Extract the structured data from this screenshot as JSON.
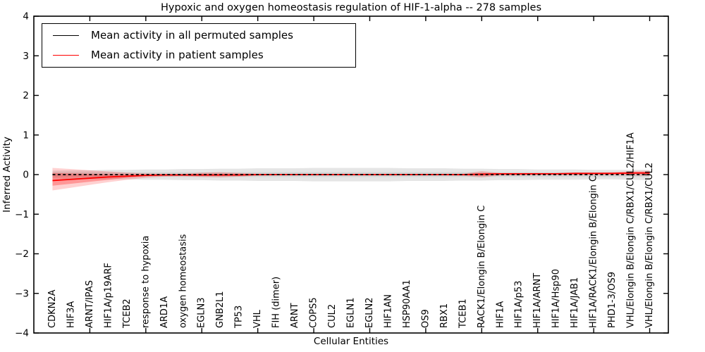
{
  "chart_data": {
    "type": "line",
    "title": "Hypoxic and oxygen homeostasis regulation of HIF-1-alpha -- 278 samples",
    "xlabel": "Cellular Entities",
    "ylabel": "Inferred Activity",
    "ylim": [
      -4,
      4
    ],
    "yticks": [
      4,
      3,
      2,
      1,
      0,
      -1,
      -2,
      -3,
      -4
    ],
    "xlim": [
      0,
      34
    ],
    "x_major_ticks": [
      3,
      6,
      9,
      12,
      15,
      18,
      21,
      24,
      27,
      30,
      33
    ],
    "grid": false,
    "legend_position": "upper left",
    "categories": [
      "CDKN2A",
      "HIF3A",
      "ARNT/IPAS",
      "HIF1A/p19ARF",
      "TCEB2",
      "response to hypoxia",
      "ARD1A",
      "oxygen homeostasis",
      "EGLN3",
      "GNB2L1",
      "TP53",
      "VHL",
      "FIH (dimer)",
      "ARNT",
      "COPS5",
      "CUL2",
      "EGLN1",
      "EGLN2",
      "HIF1AN",
      "HSP90AA1",
      "OS9",
      "RBX1",
      "TCEB1",
      "RACK1/Elongin B/Elongin C",
      "HIF1A",
      "HIF1A/p53",
      "HIF1A/ARNT",
      "HIF1A/Hsp90",
      "HIF1A/JAB1",
      "HIF1A/RACK1/Elongin B/Elongin C",
      "PHD1-3/OS9",
      "VHL/Elongin B/Elongin C/RBX1/CUL2/HIF1A",
      "VHL/Elongin B/Elongin C/RBX1/CUL2"
    ],
    "series": [
      {
        "name": "Mean activity in all permuted samples",
        "color": "#000000",
        "line_style": "dashed",
        "values": [
          0,
          0,
          0,
          0,
          0,
          0,
          0,
          0,
          0,
          0,
          0,
          0,
          0,
          0,
          0,
          0,
          0,
          0,
          0,
          0,
          0,
          0,
          0,
          0,
          0,
          0,
          0,
          0,
          0,
          0,
          0,
          0,
          0
        ]
      },
      {
        "name": "Mean activity in patient samples",
        "color": "#ff0000",
        "line_style": "solid",
        "values": [
          -0.15,
          -0.12,
          -0.09,
          -0.06,
          -0.04,
          -0.02,
          -0.01,
          -0.01,
          -0.01,
          -0.01,
          -0.01,
          0,
          0,
          0,
          0,
          0,
          0,
          0,
          0,
          0,
          0,
          0,
          0,
          0.01,
          0.02,
          0.02,
          0.02,
          0.02,
          0.03,
          0.03,
          0.03,
          0.04,
          0.04
        ]
      }
    ],
    "bands": [
      {
        "name": "permuted-sample-range-outer",
        "color": "#000000",
        "opacity": 0.1,
        "upper": [
          0.1,
          0.11,
          0.11,
          0.12,
          0.12,
          0.13,
          0.13,
          0.14,
          0.14,
          0.15,
          0.15,
          0.16,
          0.16,
          0.16,
          0.17,
          0.17,
          0.17,
          0.17,
          0.17,
          0.16,
          0.16,
          0.16,
          0.15,
          0.15,
          0.14,
          0.14,
          0.13,
          0.13,
          0.13,
          0.12,
          0.12,
          0.12,
          0.12
        ],
        "lower": [
          -0.1,
          -0.11,
          -0.11,
          -0.12,
          -0.12,
          -0.13,
          -0.13,
          -0.14,
          -0.14,
          -0.15,
          -0.15,
          -0.16,
          -0.16,
          -0.16,
          -0.17,
          -0.17,
          -0.17,
          -0.17,
          -0.17,
          -0.16,
          -0.16,
          -0.16,
          -0.15,
          -0.15,
          -0.14,
          -0.14,
          -0.13,
          -0.13,
          -0.13,
          -0.12,
          -0.12,
          -0.13,
          -0.14
        ]
      },
      {
        "name": "permuted-sample-range-inner",
        "color": "#000000",
        "opacity": 0.07,
        "upper": [
          0.06,
          0.06,
          0.06,
          0.06,
          0.06,
          0.06,
          0.06,
          0.06,
          0.06,
          0.06,
          0.06,
          0.06,
          0.06,
          0.06,
          0.06,
          0.06,
          0.06,
          0.06,
          0.06,
          0.06,
          0.06,
          0.06,
          0.06,
          0.06,
          0.06,
          0.06,
          0.06,
          0.06,
          0.06,
          0.06,
          0.06,
          0.06,
          0.06
        ],
        "lower": [
          -0.06,
          -0.06,
          -0.06,
          -0.06,
          -0.06,
          -0.06,
          -0.06,
          -0.06,
          -0.06,
          -0.06,
          -0.06,
          -0.06,
          -0.06,
          -0.06,
          -0.06,
          -0.06,
          -0.06,
          -0.06,
          -0.06,
          -0.06,
          -0.06,
          -0.06,
          -0.06,
          -0.06,
          -0.06,
          -0.06,
          -0.06,
          -0.06,
          -0.06,
          -0.06,
          -0.06,
          -0.06,
          -0.06
        ]
      },
      {
        "name": "patient-sample-range-outer",
        "color": "#ff0000",
        "opacity": 0.18,
        "upper": [
          0.17,
          0.14,
          0.11,
          0.08,
          0.05,
          0.03,
          0.02,
          0.02,
          0.05,
          0.06,
          0.04,
          0.02,
          0.01,
          0.01,
          0.01,
          0.01,
          0.01,
          0.01,
          0.01,
          0.01,
          0.01,
          0.01,
          0.02,
          0.09,
          0.04,
          0.04,
          0.04,
          0.04,
          0.05,
          0.05,
          0.06,
          0.09,
          0.1
        ],
        "lower": [
          -0.4,
          -0.33,
          -0.26,
          -0.19,
          -0.13,
          -0.08,
          -0.05,
          -0.04,
          -0.06,
          -0.07,
          -0.05,
          -0.03,
          -0.02,
          -0.02,
          -0.02,
          -0.02,
          -0.02,
          -0.02,
          -0.02,
          -0.02,
          -0.02,
          -0.02,
          -0.03,
          -0.07,
          -0.02,
          -0.02,
          -0.01,
          -0.01,
          -0.01,
          -0.01,
          -0.01,
          -0.02,
          -0.03
        ]
      },
      {
        "name": "patient-sample-range-inner",
        "color": "#ff0000",
        "opacity": 0.28,
        "upper": [
          0.04,
          0.03,
          0.02,
          0.01,
          0.01,
          0.01,
          0.01,
          0.01,
          0.02,
          0.02,
          0.02,
          0.01,
          0.01,
          0.01,
          0.01,
          0.01,
          0.01,
          0.01,
          0.01,
          0.01,
          0.01,
          0.01,
          0.01,
          0.04,
          0.03,
          0.03,
          0.03,
          0.03,
          0.04,
          0.04,
          0.04,
          0.06,
          0.07
        ],
        "lower": [
          -0.28,
          -0.23,
          -0.18,
          -0.13,
          -0.08,
          -0.04,
          -0.02,
          -0.02,
          -0.03,
          -0.03,
          -0.02,
          -0.01,
          -0.01,
          -0.01,
          -0.01,
          -0.01,
          -0.01,
          -0.01,
          -0.01,
          -0.01,
          -0.01,
          -0.01,
          -0.01,
          -0.03,
          -0.01,
          -0.01,
          0,
          0,
          0,
          0.01,
          0.01,
          0.02,
          0.02
        ]
      }
    ]
  }
}
